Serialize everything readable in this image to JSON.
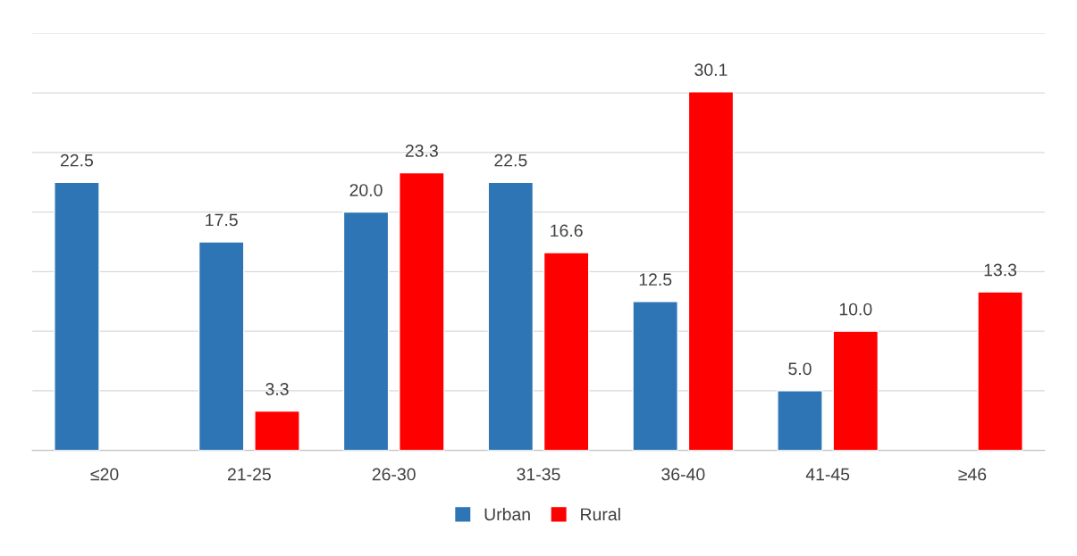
{
  "chart_data": {
    "type": "bar",
    "categories": [
      "≤20",
      "21-25",
      "26-30",
      "31-35",
      "36-40",
      "41-45",
      "≥46"
    ],
    "series": [
      {
        "name": "Urban",
        "color": "#2e75b6",
        "values": [
          22.5,
          17.5,
          20.0,
          22.5,
          12.5,
          5.0,
          null
        ],
        "value_labels": [
          "22.5",
          "17.5",
          "20.0",
          "22.5",
          "12.5",
          "5.0",
          null
        ]
      },
      {
        "name": "Rural",
        "color": "#ff0000",
        "values": [
          null,
          3.3,
          23.3,
          16.6,
          30.1,
          10.0,
          13.3
        ],
        "value_labels": [
          null,
          "3.3",
          "23.3",
          "16.6",
          "30.1",
          "10.0",
          "13.3"
        ]
      }
    ],
    "ylim": [
      0,
      35
    ],
    "yticks": [
      {
        "value": 0,
        "label": null
      },
      {
        "value": 5,
        "label": null
      },
      {
        "value": 10,
        "label": null
      },
      {
        "value": 15,
        "label": null
      },
      {
        "value": 20,
        "label": null
      },
      {
        "value": 25,
        "label": null
      },
      {
        "value": 30,
        "label": null
      },
      {
        "value": 35,
        "label": null
      }
    ],
    "tick_labels": "x",
    "grid": "y",
    "legend": "bottom"
  }
}
